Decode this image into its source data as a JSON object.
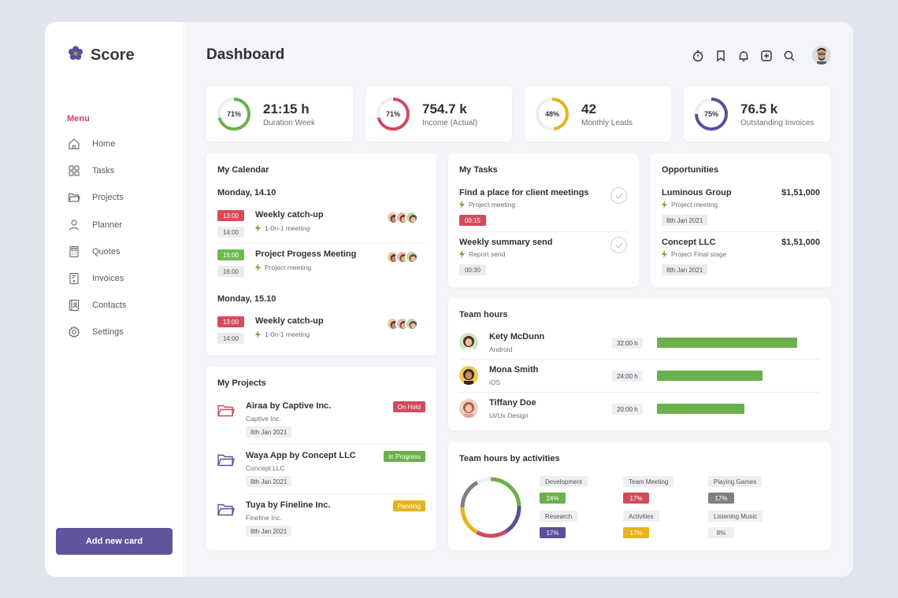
{
  "app": {
    "name": "Score"
  },
  "sidebar": {
    "menu_title": "Menu",
    "items": [
      {
        "label": "Home",
        "icon": "home-icon"
      },
      {
        "label": "Tasks",
        "icon": "grid-icon"
      },
      {
        "label": "Projects",
        "icon": "folder-icon"
      },
      {
        "label": "Planner",
        "icon": "user-icon"
      },
      {
        "label": "Quotes",
        "icon": "calculator-icon"
      },
      {
        "label": "Invoices",
        "icon": "invoice-icon"
      },
      {
        "label": "Contacts",
        "icon": "contacts-icon"
      },
      {
        "label": "Settings",
        "icon": "gear-icon"
      }
    ],
    "add_button": "Add new card"
  },
  "header": {
    "title": "Dashboard"
  },
  "stats": [
    {
      "value": "21:15 h",
      "label": "Duration Week",
      "percent": 71,
      "pct_label": "71%",
      "color": "#6ab04c"
    },
    {
      "value": "754.7 k",
      "label": "Income (Actual)",
      "percent": 71,
      "pct_label": "71%",
      "color": "#d14a5c"
    },
    {
      "value": "42",
      "label": "Monthly Leads",
      "percent": 48,
      "pct_label": "48%",
      "color": "#e8b21c"
    },
    {
      "value": "76.5 k",
      "label": "Outstanding Invoices",
      "percent": 75,
      "pct_label": "75%",
      "color": "#5a4f98"
    }
  ],
  "calendar": {
    "title": "My Calendar",
    "days": [
      {
        "date": "Monday, 14.10",
        "events": [
          {
            "title": "Weekly catch-up",
            "sub": "1-0n-1 meeting",
            "start": "13:00",
            "end": "14:00"
          },
          {
            "title": "Project Progess Meeting",
            "sub": "Project meeting",
            "start": "15:00",
            "end": "16:00"
          }
        ]
      },
      {
        "date": "Monday, 15.10",
        "events": [
          {
            "title": "Weekly catch-up",
            "sub": "1-0n-1 meeting",
            "start": "13:00",
            "end": "14:00"
          }
        ]
      }
    ]
  },
  "projects": {
    "title": "My Projects",
    "items": [
      {
        "title": "Airaa by Captive Inc.",
        "company": "Captive Inc.",
        "date": "8th Jan 2021",
        "status": "On Hold",
        "status_color": "#d14a5c"
      },
      {
        "title": "Waya App by Concept LLC",
        "company": "Concept LLC",
        "date": "8th Jan 2021",
        "status": "In Progress",
        "status_color": "#6ab04c"
      },
      {
        "title": "Tuya by Fineline Inc.",
        "company": "Fineline Inc.",
        "date": "8th Jan 2021",
        "status": "Pending",
        "status_color": "#e8b21c"
      }
    ]
  },
  "tasks": {
    "title": "My Tasks",
    "items": [
      {
        "title": "Find a place for client meetings",
        "sub": "Project meeting",
        "time": "00:15"
      },
      {
        "title": "Weekly summary send",
        "sub": "Report send",
        "time": "00:30"
      }
    ]
  },
  "opportunities": {
    "title": "Opportunities",
    "items": [
      {
        "name": "Luminous Group",
        "amount": "$1,51,000",
        "sub": "Project meeting",
        "date": "8th Jan 2021"
      },
      {
        "name": "Concept LLC",
        "amount": "$1,51,000",
        "sub": "Project Final stage",
        "date": "8th Jan 2021"
      }
    ]
  },
  "team_hours": {
    "title": "Team hours",
    "members": [
      {
        "name": "Kety McDunn",
        "role": "Android",
        "hours": "32:00 h",
        "hours_value": 32
      },
      {
        "name": "Mona Smith",
        "role": "iOS",
        "hours": "24:00 h",
        "hours_value": 24
      },
      {
        "name": "Tiffany Doe",
        "role": "Ui/Ux Design",
        "hours": "20:00 h",
        "hours_value": 20
      }
    ]
  },
  "activities": {
    "title": "Team hours by activities",
    "items": [
      {
        "label": "Development",
        "pct": "24%",
        "value": 24,
        "color": "#6ab04c"
      },
      {
        "label": "Team Meeting",
        "pct": "17%",
        "value": 17,
        "color": "#d14a5c"
      },
      {
        "label": "Playing Games",
        "pct": "17%",
        "value": 17,
        "color": "#808080"
      },
      {
        "label": "Research",
        "pct": "17%",
        "value": 17,
        "color": "#5a4f98"
      },
      {
        "label": "Activities",
        "pct": "17%",
        "value": 17,
        "color": "#e8b21c"
      },
      {
        "label": "Listening Music",
        "pct": "8%",
        "value": 8,
        "color": "#eeeff2"
      }
    ]
  }
}
